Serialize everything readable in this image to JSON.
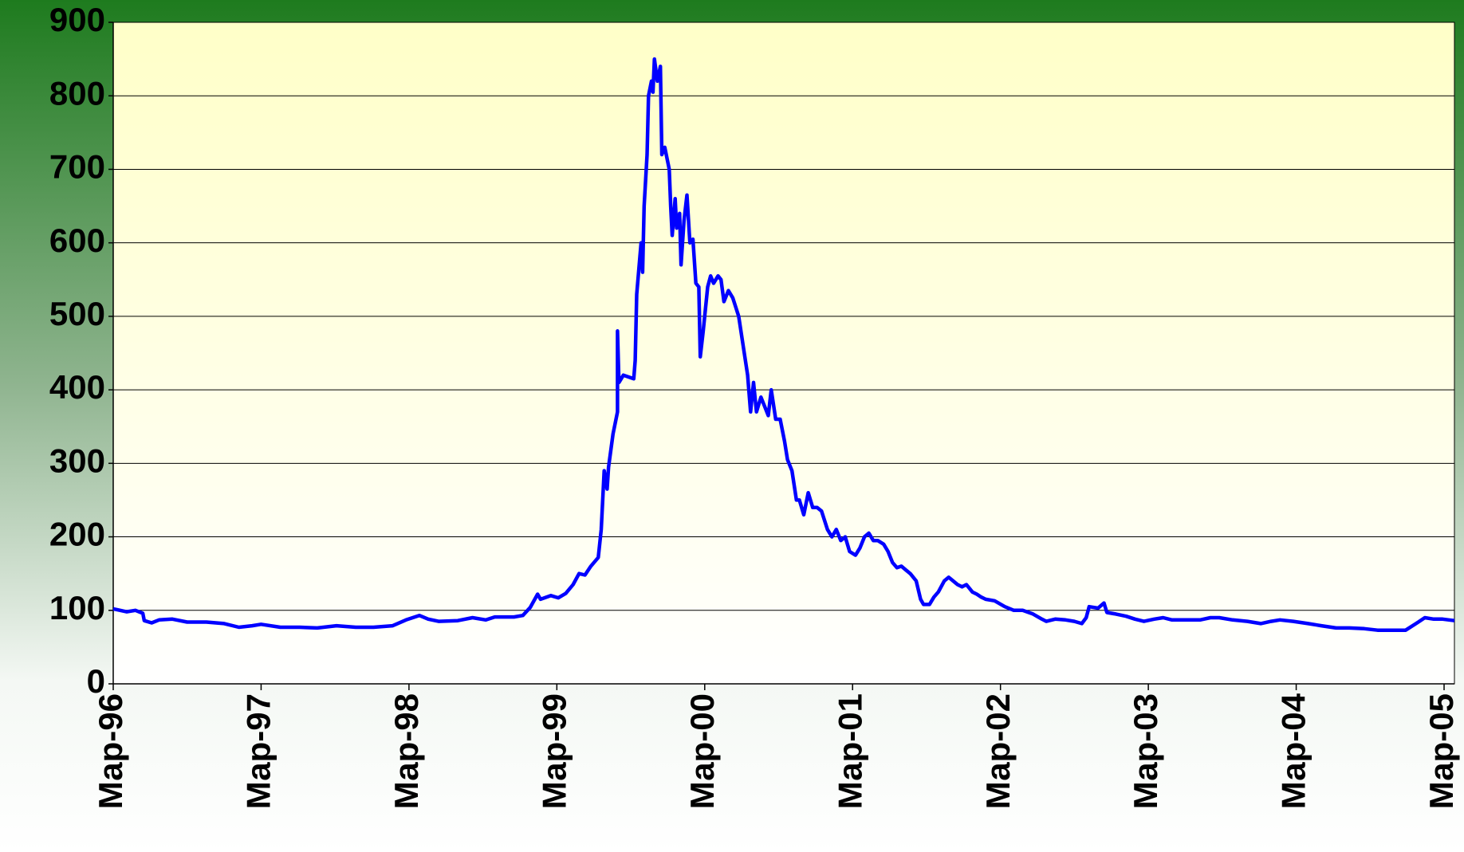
{
  "chart_data": {
    "type": "line",
    "color": "#0000ff",
    "grid": true,
    "x": [
      1996.17,
      1996.26,
      1996.32,
      1996.37,
      1996.38,
      1996.43,
      1996.48,
      1996.57,
      1996.67,
      1996.8,
      1996.92,
      1997.02,
      1997.11,
      1997.17,
      1997.3,
      1997.43,
      1997.55,
      1997.68,
      1997.81,
      1997.93,
      1998.06,
      1998.15,
      1998.24,
      1998.3,
      1998.37,
      1998.5,
      1998.6,
      1998.69,
      1998.75,
      1998.88,
      1998.94,
      1998.99,
      1999.04,
      1999.06,
      1999.13,
      1999.18,
      1999.23,
      1999.28,
      1999.32,
      1999.36,
      1999.4,
      1999.45,
      1999.47,
      1999.49,
      1999.51,
      1999.52,
      1999.55,
      1999.58,
      1999.58,
      1999.59,
      1999.62,
      1999.69,
      1999.7,
      1999.71,
      1999.74,
      1999.75,
      1999.76,
      1999.78,
      1999.79,
      1999.81,
      1999.82,
      1999.83,
      1999.85,
      1999.87,
      1999.88,
      1999.9,
      1999.93,
      1999.94,
      1999.95,
      1999.97,
      1999.98,
      2000.0,
      2000.01,
      2000.03,
      2000.05,
      2000.07,
      2000.09,
      2000.11,
      2000.13,
      2000.14,
      2000.16,
      2000.19,
      2000.21,
      2000.23,
      2000.26,
      2000.28,
      2000.3,
      2000.33,
      2000.36,
      2000.4,
      2000.43,
      2000.46,
      2000.48,
      2000.5,
      2000.52,
      2000.55,
      2000.57,
      2000.6,
      2000.62,
      2000.65,
      2000.68,
      2000.71,
      2000.73,
      2000.76,
      2000.79,
      2000.81,
      2000.84,
      2000.87,
      2000.9,
      2000.93,
      2000.96,
      2001.0,
      2001.03,
      2001.06,
      2001.09,
      2001.12,
      2001.15,
      2001.19,
      2001.22,
      2001.25,
      2001.28,
      2001.31,
      2001.34,
      2001.38,
      2001.41,
      2001.44,
      2001.47,
      2001.5,
      2001.53,
      2001.56,
      2001.6,
      2001.63,
      2001.65,
      2001.69,
      2001.72,
      2001.75,
      2001.79,
      2001.82,
      2001.85,
      2001.88,
      2001.91,
      2001.94,
      2001.98,
      2002.01,
      2002.04,
      2002.07,
      2002.13,
      2002.2,
      2002.26,
      2002.32,
      2002.39,
      2002.45,
      2002.48,
      2002.54,
      2002.61,
      2002.67,
      2002.72,
      2002.75,
      2002.77,
      2002.83,
      2002.87,
      2002.89,
      2002.95,
      2003.02,
      2003.08,
      2003.14,
      2003.21,
      2003.27,
      2003.33,
      2003.43,
      2003.52,
      2003.59,
      2003.65,
      2003.74,
      2003.84,
      2003.93,
      2004.0,
      2004.06,
      2004.15,
      2004.25,
      2004.34,
      2004.44,
      2004.53,
      2004.63,
      2004.72,
      2004.82,
      2004.91,
      2004.98,
      2005.04,
      2005.1,
      2005.16,
      2005.24
    ],
    "values": [
      102,
      98,
      100,
      96,
      86,
      83,
      87,
      88,
      84,
      84,
      82,
      77,
      79,
      81,
      77,
      77,
      76,
      79,
      77,
      77,
      79,
      87,
      93,
      88,
      85,
      86,
      90,
      87,
      91,
      91,
      93,
      104,
      122,
      115,
      120,
      117,
      123,
      135,
      150,
      148,
      160,
      172,
      210,
      290,
      265,
      295,
      340,
      370,
      480,
      410,
      420,
      415,
      440,
      530,
      600,
      560,
      650,
      720,
      800,
      820,
      805,
      850,
      820,
      840,
      720,
      730,
      700,
      650,
      610,
      660,
      620,
      640,
      570,
      630,
      665,
      600,
      605,
      545,
      540,
      445,
      480,
      540,
      555,
      545,
      555,
      550,
      520,
      535,
      525,
      500,
      460,
      420,
      370,
      410,
      370,
      390,
      380,
      365,
      400,
      360,
      360,
      330,
      305,
      290,
      250,
      250,
      230,
      260,
      240,
      240,
      235,
      210,
      200,
      210,
      195,
      200,
      180,
      175,
      185,
      200,
      205,
      195,
      195,
      190,
      180,
      165,
      158,
      160,
      155,
      150,
      140,
      115,
      108,
      108,
      118,
      125,
      140,
      145,
      140,
      135,
      132,
      135,
      125,
      122,
      118,
      115,
      113,
      105,
      100,
      100,
      95,
      88,
      85,
      88,
      87,
      85,
      82,
      90,
      105,
      103,
      110,
      97,
      95,
      92,
      88,
      85,
      88,
      90,
      87,
      87,
      87,
      90,
      90,
      87,
      85,
      82,
      85,
      87,
      85,
      82,
      79,
      76,
      76,
      75,
      73,
      73,
      73,
      82,
      90,
      88,
      88,
      86
    ],
    "xlim": [
      1996.17,
      2005.24
    ],
    "xticks": [
      {
        "value": 1996.17,
        "label": "Мар-96"
      },
      {
        "value": 1997.17,
        "label": "Мар-97"
      },
      {
        "value": 1998.17,
        "label": "Мар-98"
      },
      {
        "value": 1999.17,
        "label": "Мар-99"
      },
      {
        "value": 2000.17,
        "label": "Мар-00"
      },
      {
        "value": 2001.17,
        "label": "Мар-01"
      },
      {
        "value": 2002.17,
        "label": "Мар-02"
      },
      {
        "value": 2003.17,
        "label": "Мар-03"
      },
      {
        "value": 2004.17,
        "label": "Мар-04"
      },
      {
        "value": 2005.17,
        "label": "Мар-05"
      }
    ],
    "ylim": [
      0,
      900
    ],
    "yticks": [
      0,
      100,
      200,
      300,
      400,
      500,
      600,
      700,
      800,
      900
    ]
  }
}
